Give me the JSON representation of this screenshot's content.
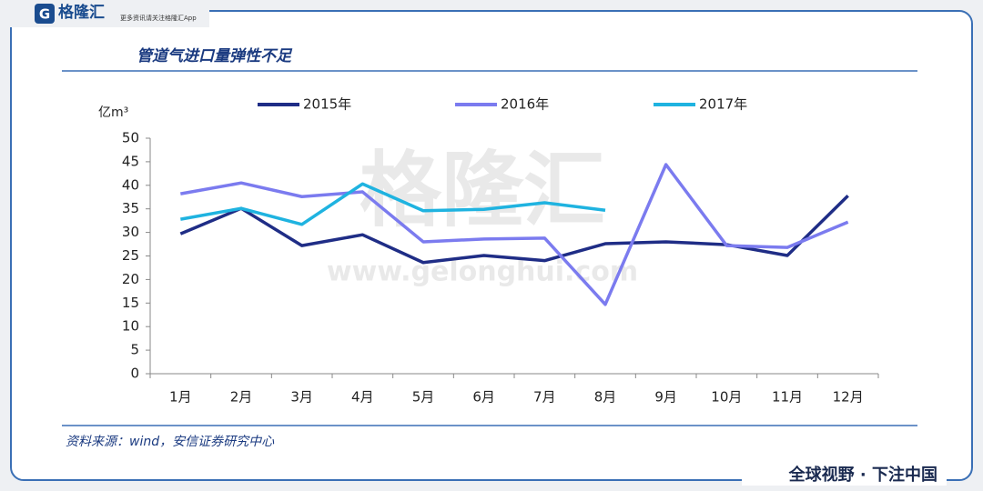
{
  "brand": {
    "logo": "格隆汇",
    "tagline": "更多资讯请关注格隆汇App"
  },
  "watermark": {
    "name": "格隆汇",
    "url": "www.gelonghui.com"
  },
  "footer": "全球视野 · 下注中国",
  "chart_data": {
    "type": "line",
    "title": "管道气进口量弹性不足",
    "y_label": "亿m³",
    "source": "资料来源：wind，安信证券研究中心",
    "categories": [
      "1月",
      "2月",
      "3月",
      "4月",
      "5月",
      "6月",
      "7月",
      "8月",
      "9月",
      "10月",
      "11月",
      "12月"
    ],
    "series": [
      {
        "name": "2015年",
        "color": "#1f2d86",
        "values": [
          29.7,
          35.1,
          27.2,
          29.5,
          23.6,
          25.1,
          24.0,
          27.6,
          28.0,
          27.4,
          25.1,
          37.8
        ]
      },
      {
        "name": "2016年",
        "color": "#7b7bef",
        "values": [
          38.2,
          40.5,
          37.6,
          38.6,
          28.0,
          28.6,
          28.8,
          14.7,
          44.4,
          27.2,
          26.8,
          32.2
        ]
      },
      {
        "name": "2017年",
        "color": "#1fb3e0",
        "values": [
          32.8,
          35.1,
          31.7,
          40.3,
          34.6,
          34.9,
          36.3,
          34.7,
          null,
          null,
          null,
          null
        ]
      }
    ],
    "ylim": [
      0,
      50
    ],
    "yticks": [
      0,
      5,
      10,
      15,
      20,
      25,
      30,
      35,
      40,
      45,
      50
    ],
    "grid": false,
    "legend": "top"
  }
}
